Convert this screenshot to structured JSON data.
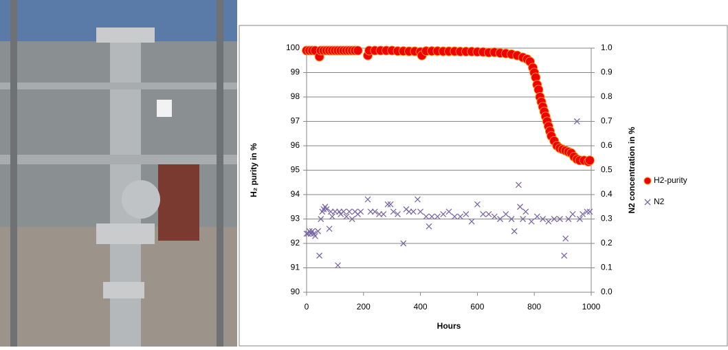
{
  "chart_data": {
    "type": "scatter",
    "xlabel": "Hours",
    "ylabel": "H₂ purity in %",
    "y2label": "N2 concentration in %",
    "xlim": [
      0,
      1000
    ],
    "xticks": [
      0,
      200,
      400,
      600,
      800,
      1000
    ],
    "ylim": [
      90,
      100
    ],
    "yticks": [
      90,
      91,
      92,
      93,
      94,
      95,
      96,
      97,
      98,
      99,
      100
    ],
    "y2lim": [
      0,
      1
    ],
    "y2ticks": [
      {
        "value": 0,
        "label": "0.0"
      },
      {
        "value": 0.1,
        "label": "0.1"
      },
      {
        "value": 0.2,
        "label": "0.2"
      },
      {
        "value": 0.3,
        "label": "0.3"
      },
      {
        "value": 0.4,
        "label": "0.4"
      },
      {
        "value": 0.5,
        "label": "0.5"
      },
      {
        "value": 0.6,
        "label": "0.6"
      },
      {
        "value": 0.7,
        "label": "0.7"
      },
      {
        "value": 0.8,
        "label": "0.8"
      },
      {
        "value": 0.9,
        "label": "0.9"
      },
      {
        "value": 1,
        "label": "1.0"
      }
    ],
    "grid": true,
    "legend": "right",
    "series": [
      {
        "name": "H2-purity",
        "color": "#f00000",
        "marker": "circle",
        "x": [
          0,
          10,
          20,
          30,
          45,
          50,
          60,
          70,
          80,
          90,
          100,
          110,
          120,
          130,
          140,
          150,
          160,
          170,
          180,
          215,
          220,
          240,
          260,
          280,
          300,
          320,
          340,
          360,
          380,
          400,
          405,
          420,
          440,
          460,
          480,
          500,
          520,
          540,
          560,
          580,
          600,
          620,
          640,
          660,
          680,
          700,
          720,
          740,
          760,
          775,
          785,
          795,
          800,
          805,
          810,
          815,
          820,
          825,
          830,
          835,
          840,
          845,
          850,
          855,
          860,
          870,
          880,
          890,
          900,
          910,
          920,
          930,
          940,
          950,
          960,
          975,
          990,
          995
        ],
        "values": [
          99.9,
          99.9,
          99.9,
          99.9,
          99.65,
          99.9,
          99.9,
          99.9,
          99.9,
          99.9,
          99.9,
          99.9,
          99.9,
          99.9,
          99.9,
          99.9,
          99.9,
          99.9,
          99.9,
          99.7,
          99.9,
          99.9,
          99.9,
          99.9,
          99.9,
          99.88,
          99.88,
          99.87,
          99.87,
          99.85,
          99.7,
          99.88,
          99.88,
          99.88,
          99.87,
          99.87,
          99.87,
          99.86,
          99.86,
          99.86,
          99.85,
          99.84,
          99.82,
          99.83,
          99.8,
          99.78,
          99.75,
          99.7,
          99.62,
          99.55,
          99.45,
          99.2,
          99.0,
          98.8,
          98.5,
          98.3,
          98.0,
          97.8,
          97.6,
          97.4,
          97.2,
          97.0,
          96.8,
          96.6,
          96.4,
          96.2,
          96.0,
          95.9,
          95.85,
          95.8,
          95.75,
          95.7,
          95.55,
          95.45,
          95.4,
          95.4,
          95.35,
          95.4
        ]
      },
      {
        "name": "N2",
        "color": "#7b68a6",
        "marker": "cross",
        "axis": "y2",
        "x": [
          0,
          5,
          10,
          15,
          20,
          25,
          30,
          40,
          45,
          50,
          55,
          60,
          65,
          70,
          80,
          85,
          90,
          100,
          110,
          115,
          120,
          130,
          140,
          150,
          160,
          170,
          180,
          190,
          215,
          225,
          240,
          255,
          270,
          285,
          295,
          305,
          320,
          340,
          350,
          360,
          375,
          390,
          400,
          420,
          430,
          440,
          460,
          480,
          500,
          520,
          540,
          560,
          580,
          600,
          620,
          640,
          660,
          680,
          700,
          720,
          730,
          745,
          750,
          760,
          770,
          790,
          810,
          830,
          850,
          870,
          890,
          905,
          910,
          920,
          935,
          950,
          960,
          970,
          985,
          995
        ],
        "values": [
          0.24,
          0.24,
          0.25,
          0.24,
          0.25,
          0.24,
          0.23,
          0.25,
          0.15,
          0.3,
          0.33,
          0.34,
          0.35,
          0.34,
          0.26,
          0.33,
          0.31,
          0.33,
          0.11,
          0.33,
          0.32,
          0.33,
          0.31,
          0.33,
          0.3,
          0.33,
          0.32,
          0.33,
          0.38,
          0.33,
          0.33,
          0.32,
          0.32,
          0.36,
          0.36,
          0.33,
          0.32,
          0.2,
          0.34,
          0.33,
          0.33,
          0.38,
          0.33,
          0.31,
          0.27,
          0.31,
          0.31,
          0.32,
          0.33,
          0.31,
          0.31,
          0.32,
          0.29,
          0.36,
          0.32,
          0.32,
          0.31,
          0.3,
          0.32,
          0.3,
          0.25,
          0.44,
          0.35,
          0.3,
          0.33,
          0.29,
          0.31,
          0.3,
          0.29,
          0.3,
          0.3,
          0.15,
          0.22,
          0.3,
          0.32,
          0.7,
          0.3,
          0.32,
          0.33,
          0.33
        ]
      }
    ]
  }
}
